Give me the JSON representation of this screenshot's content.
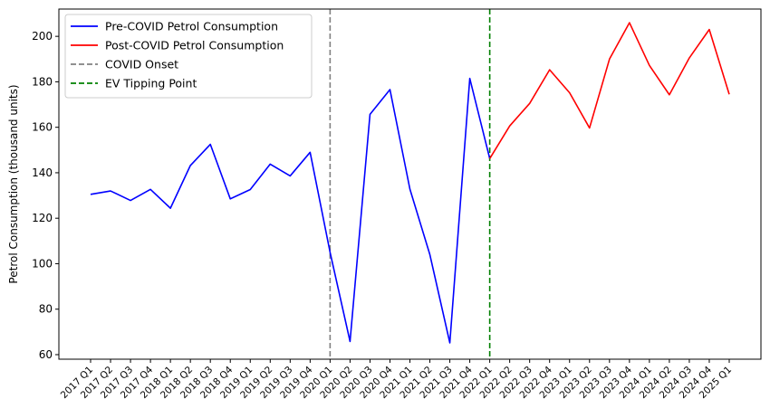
{
  "chart_data": {
    "type": "line",
    "title": "",
    "xlabel": "",
    "ylabel": "Petrol Consumption (thousand units)",
    "ylim": [
      58,
      212
    ],
    "yticks": [
      60,
      80,
      100,
      120,
      140,
      160,
      180,
      200
    ],
    "grid": false,
    "legend_placement": "top-left",
    "categories": [
      "2017 Q1",
      "2017 Q2",
      "2017 Q3",
      "2017 Q4",
      "2018 Q1",
      "2018 Q2",
      "2018 Q3",
      "2018 Q4",
      "2019 Q1",
      "2019 Q2",
      "2019 Q3",
      "2019 Q4",
      "2020 Q1",
      "2020 Q2",
      "2020 Q3",
      "2020 Q4",
      "2021 Q1",
      "2021 Q2",
      "2021 Q3",
      "2021 Q4",
      "2022 Q1",
      "2022 Q2",
      "2022 Q3",
      "2022 Q4",
      "2023 Q1",
      "2023 Q2",
      "2023 Q3",
      "2023 Q4",
      "2024 Q1",
      "2024 Q2",
      "2024 Q3",
      "2024 Q4",
      "2025 Q1"
    ],
    "series": [
      {
        "name": "Pre-COVID Petrol Consumption",
        "color": "#0000ff",
        "x": [
          "2017 Q1",
          "2017 Q2",
          "2017 Q3",
          "2017 Q4",
          "2018 Q1",
          "2018 Q2",
          "2018 Q3",
          "2018 Q4",
          "2019 Q1",
          "2019 Q2",
          "2019 Q3",
          "2019 Q4",
          "2020 Q1",
          "2020 Q2",
          "2020 Q3",
          "2020 Q4",
          "2021 Q1",
          "2021 Q2",
          "2021 Q3",
          "2021 Q4",
          "2022 Q1"
        ],
        "values": [
          130.5,
          132.0,
          127.8,
          132.7,
          124.4,
          143.2,
          152.5,
          128.5,
          132.6,
          143.8,
          138.6,
          149.0,
          105.0,
          65.8,
          165.7,
          176.6,
          132.8,
          104.0,
          65.2,
          181.5,
          146.2
        ]
      },
      {
        "name": "Post-COVID Petrol Consumption",
        "color": "#ff0000",
        "x": [
          "2022 Q1",
          "2022 Q2",
          "2022 Q3",
          "2022 Q4",
          "2023 Q1",
          "2023 Q2",
          "2023 Q3",
          "2023 Q4",
          "2024 Q1",
          "2024 Q2",
          "2024 Q3",
          "2024 Q4",
          "2025 Q1"
        ],
        "values": [
          146.2,
          160.6,
          170.5,
          185.3,
          175.2,
          159.7,
          190.0,
          206.0,
          187.2,
          174.3,
          190.5,
          203.0,
          174.5
        ]
      }
    ],
    "vlines": [
      {
        "name": "COVID Onset",
        "x": "2020 Q1",
        "color": "#808080"
      },
      {
        "name": "EV Tipping Point",
        "x": "2022 Q1",
        "color": "#008000"
      }
    ]
  }
}
